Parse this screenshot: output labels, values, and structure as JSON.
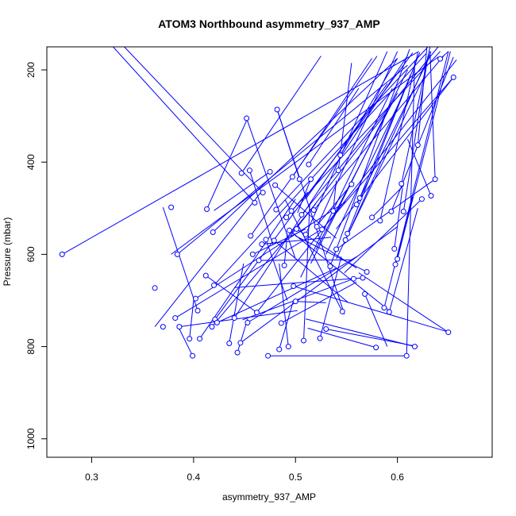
{
  "chart_data": {
    "type": "line",
    "title": "ATOM3 Northbound asymmetry_937_AMP",
    "xlabel": "asymmetry_937_AMP",
    "ylabel": "Pressure (mbar)",
    "xlim": [
      0.256,
      0.693
    ],
    "ylim": [
      1040,
      150
    ],
    "y_reversed": true,
    "grid": false,
    "x_ticks": [
      0.3,
      0.4,
      0.5,
      0.6
    ],
    "x_tick_labels": [
      "0.3",
      "0.4",
      "0.5",
      "0.6"
    ],
    "y_ticks": [
      200,
      400,
      600,
      800,
      1000
    ],
    "y_tick_labels": [
      "200",
      "400",
      "600",
      "800",
      "1000"
    ],
    "series": [
      {
        "color": "#0000ff",
        "marker": "open-circle",
        "x": [
          0.271,
          0.362,
          0.37,
          0.378,
          0.382,
          0.384,
          0.386,
          0.396,
          0.399,
          0.402,
          0.404,
          0.406,
          0.412,
          0.413,
          0.418,
          0.419,
          0.42,
          0.421,
          0.423,
          0.435,
          0.44,
          0.443,
          0.446,
          0.447,
          0.452,
          0.453,
          0.455,
          0.456,
          0.458,
          0.46,
          0.462,
          0.464,
          0.467,
          0.468,
          0.471,
          0.473,
          0.475,
          0.479,
          0.48,
          0.481,
          0.482,
          0.484,
          0.486,
          0.489,
          0.491,
          0.493,
          0.494,
          0.496,
          0.497,
          0.498,
          0.5,
          0.501,
          0.504,
          0.506,
          0.508,
          0.51,
          0.513,
          0.515,
          0.518,
          0.521,
          0.524,
          0.526,
          0.53,
          0.534,
          0.537,
          0.54,
          0.542,
          0.544,
          0.546,
          0.549,
          0.551,
          0.555,
          0.557,
          0.56,
          0.563,
          0.566,
          0.568,
          0.57,
          0.575,
          0.579,
          0.583,
          0.587,
          0.592,
          0.594,
          0.597,
          0.598,
          0.6,
          0.604,
          0.606,
          0.609,
          0.617,
          0.62,
          0.624,
          0.633,
          0.637,
          0.642,
          0.65,
          0.655
        ],
        "y": [
          600,
          673,
          757,
          498,
          738,
          600,
          757,
          783,
          820,
          696,
          722,
          783,
          646,
          502,
          757,
          552,
          667,
          741,
          748,
          793,
          738,
          813,
          792,
          424,
          305,
          748,
          418,
          560,
          600,
          488,
          726,
          613,
          578,
          466,
          568,
          820,
          421,
          570,
          450,
          503,
          286,
          806,
          749,
          624,
          520,
          800,
          548,
          506,
          432,
          669,
          702,
          545,
          437,
          514,
          787,
          557,
          405,
          437,
          504,
          540,
          782,
          546,
          762,
          626,
          506,
          589,
          418,
          385,
          724,
          569,
          555,
          448,
          653,
          492,
          478,
          651,
          686,
          638,
          520,
          802,
          527,
          716,
          725,
          507,
          588,
          622,
          610,
          447,
          507,
          820,
          800,
          363,
          480,
          473,
          437,
          176,
          769,
          216
        ]
      }
    ],
    "segments": [
      [
        0.271,
        600,
        0.621,
        160
      ],
      [
        0.362,
        757,
        0.468,
        460
      ],
      [
        0.37,
        498,
        0.404,
        722
      ],
      [
        0.378,
        600,
        0.64,
        172
      ],
      [
        0.382,
        738,
        0.53,
        540
      ],
      [
        0.384,
        600,
        0.61,
        190
      ],
      [
        0.386,
        757,
        0.502,
        722
      ],
      [
        0.396,
        783,
        0.4,
        700
      ],
      [
        0.399,
        820,
        0.385,
        757
      ],
      [
        0.402,
        696,
        0.55,
        485
      ],
      [
        0.406,
        783,
        0.5,
        480
      ],
      [
        0.412,
        646,
        0.462,
        726
      ],
      [
        0.413,
        502,
        0.453,
        305
      ],
      [
        0.418,
        757,
        0.52,
        490
      ],
      [
        0.419,
        552,
        0.6,
        175
      ],
      [
        0.42,
        667,
        0.628,
        165
      ],
      [
        0.421,
        741,
        0.615,
        163
      ],
      [
        0.423,
        748,
        0.54,
        630
      ],
      [
        0.435,
        793,
        0.449,
        620
      ],
      [
        0.44,
        738,
        0.61,
        169
      ],
      [
        0.443,
        813,
        0.453,
        740
      ],
      [
        0.446,
        792,
        0.6,
        540
      ],
      [
        0.447,
        424,
        0.525,
        170
      ],
      [
        0.452,
        305,
        0.5,
        610
      ],
      [
        0.453,
        748,
        0.56,
        605
      ],
      [
        0.455,
        418,
        0.478,
        580
      ],
      [
        0.456,
        560,
        0.58,
        170
      ],
      [
        0.458,
        600,
        0.51,
        545
      ],
      [
        0.46,
        488,
        0.321,
        150
      ],
      [
        0.462,
        726,
        0.658,
        178
      ],
      [
        0.464,
        613,
        0.556,
        612
      ],
      [
        0.467,
        578,
        0.535,
        563
      ],
      [
        0.468,
        466,
        0.332,
        150
      ],
      [
        0.471,
        568,
        0.492,
        700
      ],
      [
        0.473,
        820,
        0.61,
        820
      ],
      [
        0.475,
        421,
        0.42,
        505
      ],
      [
        0.479,
        570,
        0.552,
        705
      ],
      [
        0.48,
        450,
        0.54,
        565
      ],
      [
        0.481,
        503,
        0.63,
        150
      ],
      [
        0.482,
        286,
        0.548,
        730
      ],
      [
        0.484,
        806,
        0.498,
        700
      ],
      [
        0.486,
        749,
        0.56,
        660
      ],
      [
        0.489,
        624,
        0.492,
        555
      ],
      [
        0.491,
        520,
        0.512,
        465
      ],
      [
        0.493,
        800,
        0.484,
        620
      ],
      [
        0.494,
        548,
        0.592,
        722
      ],
      [
        0.496,
        506,
        0.642,
        160
      ],
      [
        0.497,
        432,
        0.575,
        175
      ],
      [
        0.498,
        669,
        0.651,
        769
      ],
      [
        0.5,
        702,
        0.53,
        705
      ],
      [
        0.501,
        545,
        0.56,
        630
      ],
      [
        0.504,
        437,
        0.482,
        286
      ],
      [
        0.506,
        514,
        0.64,
        150
      ],
      [
        0.508,
        787,
        0.514,
        490
      ],
      [
        0.51,
        557,
        0.59,
        160
      ],
      [
        0.513,
        405,
        0.562,
        240
      ],
      [
        0.515,
        437,
        0.502,
        510
      ],
      [
        0.518,
        504,
        0.646,
        168
      ],
      [
        0.521,
        540,
        0.6,
        160
      ],
      [
        0.524,
        782,
        0.545,
        605
      ],
      [
        0.526,
        546,
        0.655,
        216
      ],
      [
        0.53,
        762,
        0.62,
        800
      ],
      [
        0.534,
        626,
        0.612,
        155
      ],
      [
        0.537,
        506,
        0.54,
        440
      ],
      [
        0.54,
        589,
        0.637,
        437
      ],
      [
        0.542,
        418,
        0.555,
        185
      ],
      [
        0.544,
        385,
        0.6,
        175
      ],
      [
        0.546,
        724,
        0.49,
        482
      ],
      [
        0.549,
        569,
        0.633,
        160
      ],
      [
        0.551,
        555,
        0.622,
        162
      ],
      [
        0.555,
        448,
        0.52,
        540
      ],
      [
        0.557,
        653,
        0.448,
        742
      ],
      [
        0.56,
        492,
        0.632,
        170
      ],
      [
        0.563,
        478,
        0.613,
        210
      ],
      [
        0.566,
        651,
        0.44,
        672
      ],
      [
        0.568,
        686,
        0.59,
        800
      ],
      [
        0.57,
        638,
        0.5,
        560
      ],
      [
        0.575,
        520,
        0.606,
        451
      ],
      [
        0.579,
        802,
        0.512,
        760
      ],
      [
        0.583,
        527,
        0.62,
        163
      ],
      [
        0.587,
        716,
        0.65,
        160
      ],
      [
        0.592,
        725,
        0.62,
        500
      ],
      [
        0.594,
        507,
        0.655,
        172
      ],
      [
        0.597,
        588,
        0.605,
        456
      ],
      [
        0.598,
        622,
        0.615,
        475
      ],
      [
        0.6,
        610,
        0.652,
        160
      ],
      [
        0.604,
        447,
        0.632,
        150
      ],
      [
        0.606,
        507,
        0.63,
        170
      ],
      [
        0.609,
        820,
        0.617,
        180
      ],
      [
        0.617,
        800,
        0.51,
        740
      ],
      [
        0.62,
        363,
        0.629,
        150
      ],
      [
        0.624,
        480,
        0.548,
        640
      ],
      [
        0.633,
        473,
        0.61,
        350
      ],
      [
        0.637,
        437,
        0.632,
        160
      ],
      [
        0.642,
        176,
        0.65,
        160
      ],
      [
        0.65,
        769,
        0.562,
        640
      ],
      [
        0.655,
        216,
        0.54,
        545
      ],
      [
        0.51,
        480,
        0.59,
        230
      ],
      [
        0.52,
        590,
        0.6,
        250
      ],
      [
        0.53,
        600,
        0.602,
        270
      ],
      [
        0.54,
        610,
        0.625,
        220
      ],
      [
        0.495,
        560,
        0.59,
        290
      ],
      [
        0.505,
        650,
        0.595,
        240
      ],
      [
        0.515,
        620,
        0.61,
        200
      ]
    ]
  }
}
